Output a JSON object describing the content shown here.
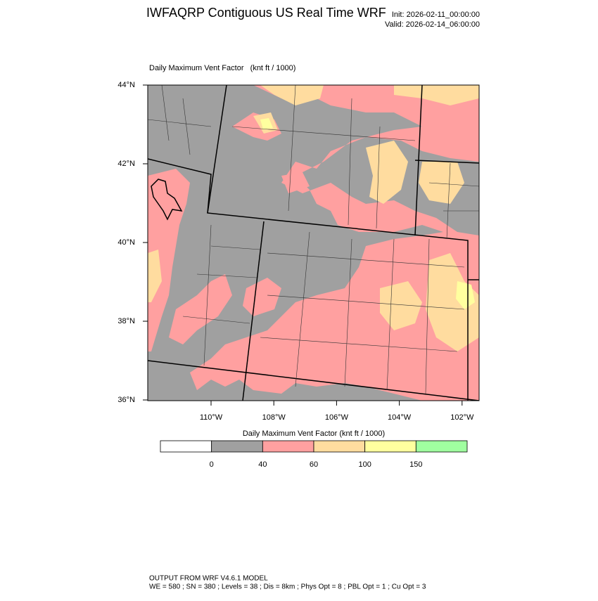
{
  "header": {
    "title": "IWFAQRP Contiguous US Real Time WRF",
    "init": "Init: 2026-02-11_00:00:00",
    "valid": "Valid: 2026-02-14_06:00:00"
  },
  "map": {
    "title": "Daily Maximum Vent Factor   (knt ft / 1000)",
    "lat_labels": [
      "44°N",
      "42°N",
      "40°N",
      "38°N",
      "36°N"
    ],
    "lon_labels": [
      "110°W",
      "108°W",
      "106°W",
      "104°W",
      "102°W"
    ]
  },
  "colorbar": {
    "title": "Daily Maximum Vent Factor  (knt ft / 1000)",
    "labels": [
      "0",
      "40",
      "60",
      "100",
      "150"
    ],
    "colors": [
      "#ffffff",
      "#a0a0a0",
      "#ffa0a0",
      "#ffdc9f",
      "#ffff9f",
      "#a0ffa0"
    ]
  },
  "footer": {
    "line1": "OUTPUT FROM WRF V4.6.1 MODEL",
    "line2": "WE = 580 ; SN = 380 ; Levels = 38 ; Dis = 8km ; Phys Opt = 8 ; PBL Opt = 1 ; Cu Opt = 3"
  }
}
